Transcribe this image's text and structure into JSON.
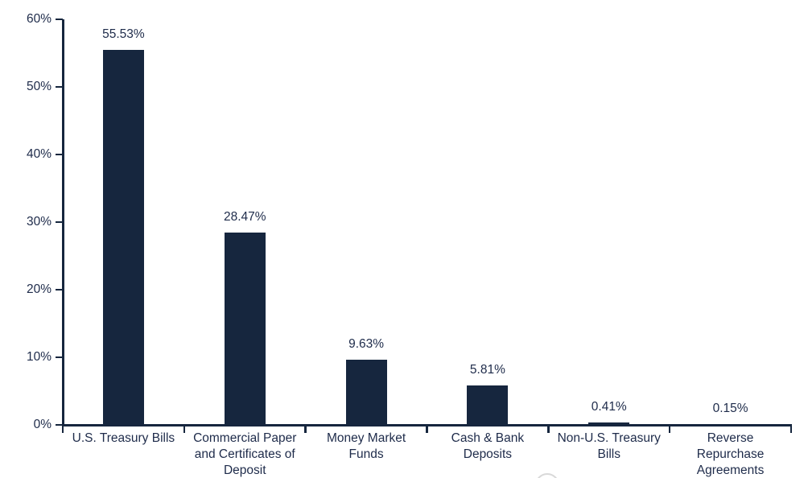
{
  "chart_data": {
    "type": "bar",
    "title": "",
    "xlabel": "",
    "ylabel": "",
    "categories": [
      "U.S. Treasury Bills",
      "Commercial Paper and Certificates of Deposit",
      "Money Market Funds",
      "Cash & Bank Deposits",
      "Non-U.S. Treasury Bills",
      "Reverse Repurchase Agreements"
    ],
    "category_label_lines": [
      [
        "U.S. Treasury Bills"
      ],
      [
        "Commercial Paper",
        "and Certificates of",
        "Deposit"
      ],
      [
        "Money Market",
        "Funds"
      ],
      [
        "Cash & Bank",
        "Deposits"
      ],
      [
        "Non-U.S. Treasury",
        "Bills"
      ],
      [
        "Reverse",
        "Repurchase",
        "Agreements"
      ]
    ],
    "values": [
      55.53,
      28.47,
      9.63,
      5.81,
      0.41,
      0.15
    ],
    "value_labels": [
      "55.53%",
      "28.47%",
      "9.63%",
      "5.81%",
      "0.41%",
      "0.15%"
    ],
    "ylim": [
      0,
      60
    ],
    "y_ticks": [
      {
        "value": 60,
        "label": "60%"
      },
      {
        "value": 50,
        "label": "50%"
      },
      {
        "value": 40,
        "label": "40%"
      },
      {
        "value": 30,
        "label": "30%"
      },
      {
        "value": 20,
        "label": "20%"
      },
      {
        "value": 10,
        "label": "10%"
      },
      {
        "value": 0,
        "label": "0%"
      }
    ],
    "grid": false,
    "legend_position": "none",
    "bar_color": "#16263e",
    "axis_color": "#16263e",
    "label_color": "#1e2b4a",
    "background_color": "#ffffff",
    "watermark_color": "#cccccc"
  }
}
